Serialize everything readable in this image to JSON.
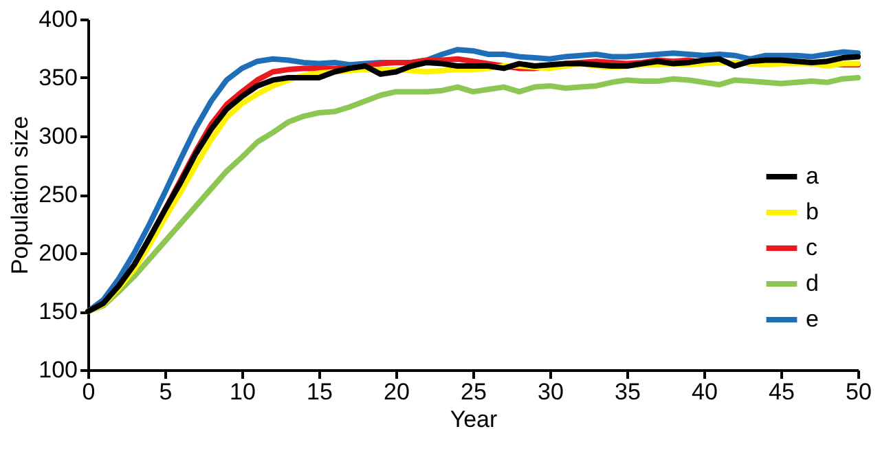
{
  "chart_data": {
    "type": "line",
    "xlabel": "Year",
    "ylabel": "Population size",
    "x": [
      0,
      1,
      2,
      3,
      4,
      5,
      6,
      7,
      8,
      9,
      10,
      11,
      12,
      13,
      14,
      15,
      16,
      17,
      18,
      19,
      20,
      21,
      22,
      23,
      24,
      25,
      26,
      27,
      28,
      29,
      30,
      31,
      32,
      33,
      34,
      35,
      36,
      37,
      38,
      39,
      40,
      41,
      42,
      43,
      44,
      45,
      46,
      47,
      48,
      49,
      50
    ],
    "xlim": [
      0,
      50
    ],
    "xticks": [
      0,
      5,
      10,
      15,
      20,
      25,
      30,
      35,
      40,
      45,
      50
    ],
    "ylim": [
      100,
      400
    ],
    "yticks": [
      100,
      150,
      200,
      250,
      300,
      350,
      400
    ],
    "grid": false,
    "legend": "bottom right",
    "marker": "none",
    "line_style": "solid",
    "series": [
      {
        "name": "e",
        "color": "#1f6fb8",
        "values": [
          150,
          160,
          178,
          200,
          225,
          252,
          280,
          307,
          330,
          348,
          358,
          364,
          366,
          365,
          363,
          362,
          363,
          361,
          362,
          363,
          363,
          363,
          365,
          370,
          374,
          373,
          370,
          370,
          368,
          367,
          366,
          368,
          369,
          370,
          368,
          368,
          369,
          370,
          371,
          370,
          369,
          370,
          369,
          366,
          369,
          369,
          369,
          368,
          370,
          372,
          371
        ]
      },
      {
        "name": "d",
        "color": "#8dc653",
        "values": [
          150,
          155,
          167,
          180,
          195,
          210,
          225,
          240,
          255,
          270,
          282,
          295,
          303,
          312,
          317,
          320,
          321,
          325,
          330,
          335,
          338,
          338,
          338,
          339,
          342,
          338,
          340,
          342,
          338,
          342,
          343,
          341,
          342,
          343,
          346,
          348,
          347,
          347,
          349,
          348,
          346,
          344,
          348,
          347,
          346,
          345,
          346,
          347,
          346,
          349,
          350
        ]
      },
      {
        "name": "c",
        "color": "#e8191f",
        "values": [
          null,
          null,
          null,
          null,
          213,
          237,
          262,
          287,
          310,
          327,
          338,
          348,
          355,
          357,
          358,
          358,
          358,
          358,
          360,
          362,
          363,
          363,
          365,
          365,
          366,
          364,
          362,
          360,
          358,
          358,
          360,
          362,
          363,
          364,
          363,
          362,
          363,
          365,
          364,
          365,
          363,
          363,
          363,
          362,
          362,
          363,
          363,
          362,
          362,
          361,
          361
        ]
      },
      {
        "name": "b",
        "color": "#fff200",
        "values": [
          150,
          156,
          170,
          186,
          207,
          230,
          252,
          275,
          297,
          316,
          328,
          336,
          343,
          348,
          352,
          354,
          355,
          356,
          357,
          357,
          357,
          356,
          355,
          356,
          357,
          357,
          358,
          360,
          360,
          359,
          358,
          360,
          362,
          360,
          359,
          360,
          361,
          361,
          362,
          361,
          362,
          363,
          363,
          362,
          361,
          362,
          362,
          362,
          360,
          362,
          362
        ]
      },
      {
        "name": "a",
        "color": "#000000",
        "values": [
          150,
          157,
          172,
          190,
          213,
          237,
          260,
          285,
          306,
          323,
          334,
          343,
          348,
          350,
          350,
          350,
          355,
          358,
          360,
          353,
          355,
          360,
          363,
          362,
          360,
          360,
          360,
          358,
          362,
          360,
          361,
          362,
          362,
          361,
          360,
          360,
          362,
          364,
          362,
          363,
          365,
          366,
          360,
          364,
          365,
          365,
          364,
          363,
          364,
          367,
          368
        ]
      }
    ]
  }
}
